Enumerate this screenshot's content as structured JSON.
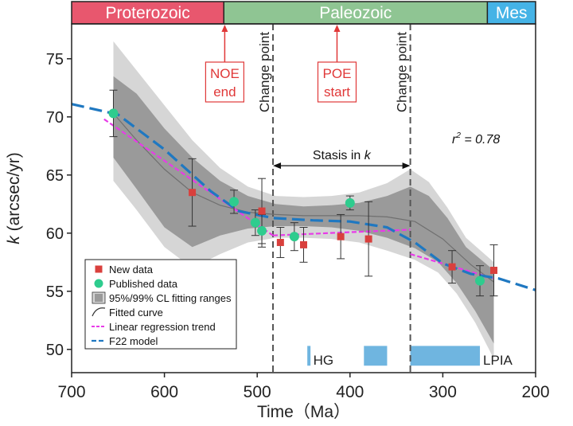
{
  "chart_data": {
    "type": "scatter",
    "xlabel": "Time（Ma）",
    "ylabel_main": "k",
    "ylabel_unit": "(arcsec/yr)",
    "xlim": [
      700,
      200
    ],
    "ylim": [
      48,
      78
    ],
    "x_ticks": [
      700,
      600,
      500,
      400,
      300,
      200
    ],
    "y_ticks": [
      50,
      55,
      60,
      65,
      70,
      75
    ],
    "r2_label": "r",
    "r2_value": "= 0.78",
    "eras": [
      {
        "name": "Proterozoic",
        "from": 700,
        "to": 536,
        "color": "#e8576e"
      },
      {
        "name": "Paleozoic",
        "from": 536,
        "to": 252,
        "color": "#8fc593"
      },
      {
        "name": "Mes",
        "from": 252,
        "to": 200,
        "color": "#45b3e6"
      }
    ],
    "change_points": [
      {
        "x": 483,
        "label": "Change point"
      },
      {
        "x": 335,
        "label": "Change point"
      }
    ],
    "events": [
      {
        "x": 535,
        "line1": "NOE",
        "line2": "end",
        "color": "#e03838"
      },
      {
        "x": 414,
        "line1": "POE",
        "line2": "start",
        "color": "#e03838"
      }
    ],
    "stasis_label": "Stasis in",
    "stasis_var": "k",
    "stasis_range": [
      483,
      335
    ],
    "stasis_y": 65.8,
    "glaciations": [
      {
        "label": "HG",
        "from": 446,
        "to": 443
      },
      {
        "label": "",
        "from": 385,
        "to": 360
      },
      {
        "label": "LPIA",
        "from": 335,
        "to": 260
      }
    ],
    "new_data": [
      {
        "x": 570,
        "y": 63.5,
        "err": 2.9
      },
      {
        "x": 495,
        "y": 61.9,
        "err": 2.8
      },
      {
        "x": 475,
        "y": 59.2,
        "err": 1.3
      },
      {
        "x": 450,
        "y": 59.0,
        "err": 1.5
      },
      {
        "x": 410,
        "y": 59.7,
        "err": 1.9
      },
      {
        "x": 380,
        "y": 59.5,
        "err": 3.2
      },
      {
        "x": 290,
        "y": 57.1,
        "err": 1.4
      },
      {
        "x": 245,
        "y": 56.8,
        "err": 2.2
      }
    ],
    "published_data": [
      {
        "x": 655,
        "y": 70.3,
        "err": 2.0
      },
      {
        "x": 525,
        "y": 62.7,
        "err": 1.0
      },
      {
        "x": 502,
        "y": 60.9,
        "err": 1.1
      },
      {
        "x": 495,
        "y": 60.2,
        "err": 1.4
      },
      {
        "x": 460,
        "y": 59.7,
        "err": 1.2
      },
      {
        "x": 400,
        "y": 62.6,
        "err": 0.6
      },
      {
        "x": 260,
        "y": 55.9,
        "err": 1.3
      }
    ],
    "fitted_curve": [
      [
        655,
        70.3
      ],
      [
        630,
        68.0
      ],
      [
        600,
        65.5
      ],
      [
        570,
        63.5
      ],
      [
        540,
        62.4
      ],
      [
        510,
        61.8
      ],
      [
        480,
        61.6
      ],
      [
        450,
        61.5
      ],
      [
        420,
        61.5
      ],
      [
        390,
        61.5
      ],
      [
        360,
        61.4
      ],
      [
        330,
        61.0
      ],
      [
        300,
        59.5
      ],
      [
        270,
        57.3
      ],
      [
        245,
        55.8
      ]
    ],
    "band95_upper": [
      [
        655,
        73.5
      ],
      [
        630,
        72.0
      ],
      [
        600,
        69.0
      ],
      [
        570,
        66.5
      ],
      [
        540,
        64.5
      ],
      [
        510,
        63.2
      ],
      [
        480,
        62.5
      ],
      [
        450,
        62.3
      ],
      [
        420,
        62.4
      ],
      [
        390,
        62.6
      ],
      [
        360,
        63.2
      ],
      [
        335,
        64.0
      ],
      [
        315,
        63.2
      ],
      [
        295,
        61.3
      ],
      [
        275,
        58.8
      ],
      [
        245,
        56.8
      ]
    ],
    "band95_lower": [
      [
        245,
        50.5
      ],
      [
        265,
        53.3
      ],
      [
        285,
        55.7
      ],
      [
        305,
        57.5
      ],
      [
        330,
        58.7
      ],
      [
        360,
        59.6
      ],
      [
        390,
        60.2
      ],
      [
        420,
        60.5
      ],
      [
        450,
        60.6
      ],
      [
        480,
        60.6
      ],
      [
        510,
        60.4
      ],
      [
        540,
        59.8
      ],
      [
        570,
        58.8
      ],
      [
        600,
        60.5
      ],
      [
        630,
        63.8
      ],
      [
        655,
        66.5
      ]
    ],
    "band99_upper": [
      [
        655,
        76.5
      ],
      [
        630,
        74.0
      ],
      [
        600,
        71.0
      ],
      [
        570,
        68.0
      ],
      [
        540,
        65.6
      ],
      [
        510,
        64.0
      ],
      [
        480,
        63.2
      ],
      [
        450,
        63.1
      ],
      [
        420,
        63.2
      ],
      [
        390,
        63.5
      ],
      [
        360,
        64.3
      ],
      [
        335,
        65.5
      ],
      [
        315,
        64.4
      ],
      [
        295,
        62.2
      ],
      [
        275,
        59.6
      ],
      [
        245,
        57.5
      ]
    ],
    "band99_lower": [
      [
        245,
        49.2
      ],
      [
        265,
        52.3
      ],
      [
        285,
        54.8
      ],
      [
        305,
        56.6
      ],
      [
        330,
        57.7
      ],
      [
        360,
        58.5
      ],
      [
        390,
        59.2
      ],
      [
        420,
        59.5
      ],
      [
        450,
        59.6
      ],
      [
        480,
        59.6
      ],
      [
        510,
        59.2
      ],
      [
        540,
        58.2
      ],
      [
        570,
        57.0
      ],
      [
        600,
        58.8
      ],
      [
        630,
        62.0
      ],
      [
        655,
        64.5
      ]
    ],
    "linear_trend": [
      [
        [
          665,
          69.8
        ],
        [
          483,
          59.8
        ]
      ],
      [
        [
          483,
          59.8
        ],
        [
          335,
          60.3
        ]
      ],
      [
        [
          335,
          58.2
        ],
        [
          245,
          56.1
        ]
      ]
    ],
    "f22_model": [
      [
        700,
        71.1
      ],
      [
        650,
        70.2
      ],
      [
        600,
        67.2
      ],
      [
        550,
        63.6
      ],
      [
        520,
        61.9
      ],
      [
        483,
        61.3
      ],
      [
        440,
        61.1
      ],
      [
        400,
        61.0
      ],
      [
        360,
        60.5
      ],
      [
        330,
        59.2
      ],
      [
        300,
        57.4
      ],
      [
        270,
        56.5
      ],
      [
        240,
        56.1
      ],
      [
        200,
        55.1
      ]
    ],
    "legend": {
      "position": "bottom-left",
      "items": [
        {
          "key": "new",
          "label": "New data"
        },
        {
          "key": "pub",
          "label": "Published data"
        },
        {
          "key": "band",
          "label": "95%/99% CL fitting ranges"
        },
        {
          "key": "fit",
          "label": "Fitted curve"
        },
        {
          "key": "linreg",
          "label": "Linear  regression trend"
        },
        {
          "key": "f22",
          "label": "F22 model"
        }
      ]
    },
    "colors": {
      "new_data": "#d9403d",
      "published_data": "#2ecc8e",
      "band95": "#9a9a9a",
      "band99": "#d6d6d6",
      "fitted_curve": "#707070",
      "linear_trend": "#e83be8",
      "f22_model": "#1f78c1",
      "glaciation": "#6fb5e0",
      "change_point": "#555555"
    }
  }
}
